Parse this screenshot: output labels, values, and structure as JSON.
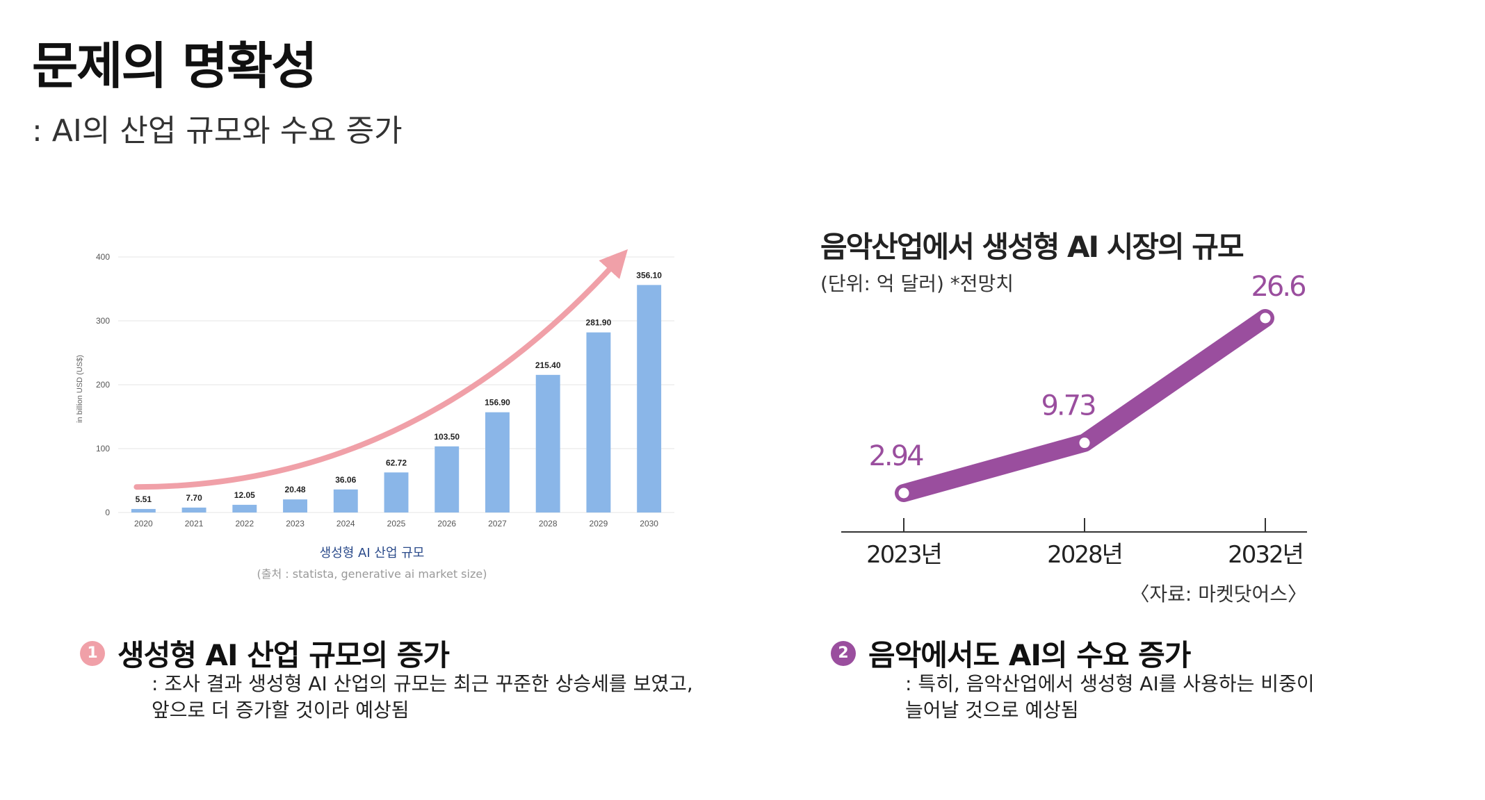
{
  "page": {
    "title": "문제의 명확성",
    "subtitle": ": AI의 산업 규모와 수요 증가"
  },
  "chart_data": [
    {
      "type": "bar",
      "title": "생성형 AI 산업 규모",
      "source": "(출처 : statista, generative ai market size)",
      "ylabel": "in billion USD (US$)",
      "xlabel": "",
      "categories": [
        "2020",
        "2021",
        "2022",
        "2023",
        "2024",
        "2025",
        "2026",
        "2027",
        "2028",
        "2029",
        "2030"
      ],
      "values": [
        5.51,
        7.7,
        12.05,
        20.48,
        36.06,
        62.72,
        103.5,
        156.9,
        215.4,
        281.9,
        356.1
      ],
      "data_labels": [
        "5.51",
        "7.70",
        "12.05",
        "20.48",
        "36.06",
        "62.72",
        "103.50",
        "156.90",
        "215.40",
        "281.90",
        "356.10"
      ],
      "yticks": [
        "0",
        "100",
        "200",
        "300",
        "400"
      ],
      "ylim": [
        0,
        400
      ],
      "grid": true,
      "trend_arrow": true,
      "colors": {
        "bar": "#8ab6e8",
        "arrow": "#f0a0a8",
        "title": "#2a4a8a"
      }
    },
    {
      "type": "line",
      "title": "음악산업에서 생성형 AI 시장의 규모",
      "subtitle": "(단위: 억 달러)  *전망치",
      "source": "〈자료: 마켓닷어스〉",
      "categories": [
        "2023년",
        "2028년",
        "2032년"
      ],
      "values": [
        2.94,
        9.73,
        26.6
      ],
      "data_labels": [
        "2.94",
        "9.73",
        "26.6"
      ],
      "colors": {
        "line": "#9a4e9e",
        "label": "#9a4e9e"
      }
    }
  ],
  "items": [
    {
      "number": "1",
      "heading": "생성형 AI 산업 규모의 증가",
      "description": ": 조사 결과 생성형 AI 산업의 규모는 최근 꾸준한 상승세를 보였고,\n앞으로 더 증가할 것이라 예상됨",
      "badge_color": "#f0a0a8"
    },
    {
      "number": "2",
      "heading": "음악에서도 AI의 수요 증가",
      "description": ": 특히, 음악산업에서 생성형 AI를 사용하는 비중이\n늘어날 것으로 예상됨",
      "badge_color": "#9a4e9e"
    }
  ]
}
